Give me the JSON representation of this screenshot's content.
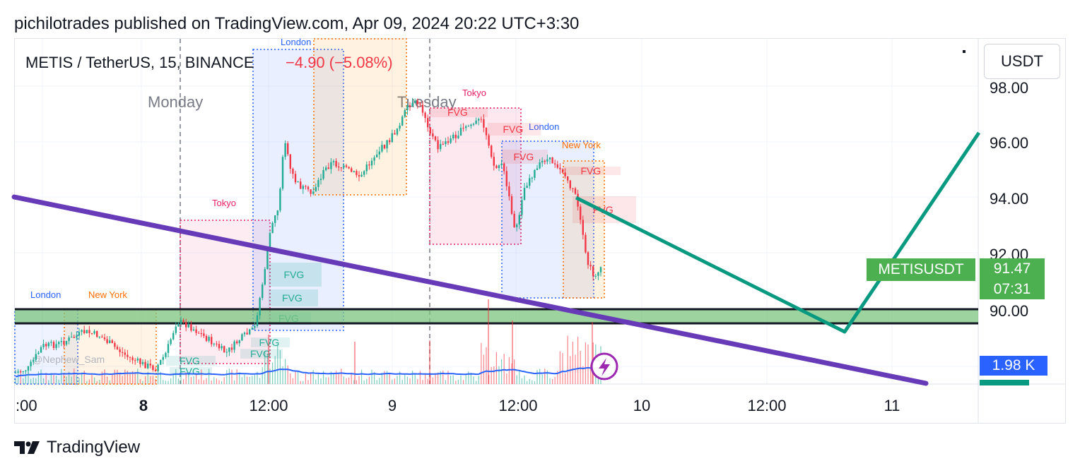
{
  "header": {
    "published": "pichilotrades published on TradingView.com, Apr 09, 2024 20:22 UTC+3:30"
  },
  "legend": {
    "symbol": "METIS / TetherUS, 15, BINANCE",
    "change_abs": "−4.90",
    "change_pct": "(−5.08%)"
  },
  "currency_button": "USDT",
  "price_axis": [
    "98.00",
    "96.00",
    "94.00",
    "92.00",
    "90.00"
  ],
  "time_axis": [
    ":00",
    "8",
    "12:00",
    "9",
    "12:00",
    "10",
    "12:00",
    "11"
  ],
  "day_labels": [
    "Monday",
    "Tuesday"
  ],
  "session_labels": [
    "London",
    "New York",
    "Tokyo",
    "London",
    "Tokyo",
    "London",
    "New York"
  ],
  "fvg_label": "FVG",
  "watermark": "@Nephew_Sam",
  "last_price": {
    "symbol": "METISUSDT",
    "price": "91.47",
    "countdown": "07:31"
  },
  "volume_badge": "1.98 K",
  "brand": "TradingView",
  "colors": {
    "up": "#22ab94",
    "down": "#f23645",
    "zone_fill": "#7bc47f",
    "trendline_purple": "#673ab7",
    "projection_green": "#089981",
    "label_green": "#4caf50",
    "volume_ma": "#2962ff"
  },
  "icons": [
    "lightning-icon",
    "tradingview-logo-icon"
  ]
}
